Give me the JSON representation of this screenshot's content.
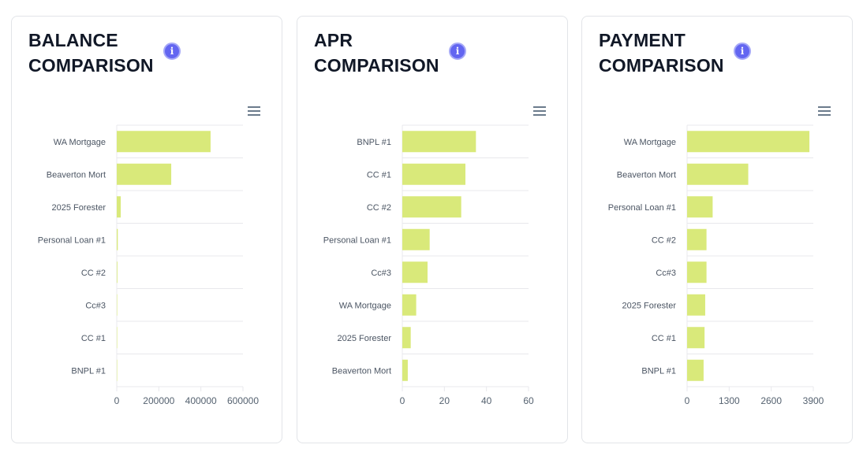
{
  "colors": {
    "bar": "#d9e97a",
    "grid": "#e8e8ec",
    "label": "#4b5563"
  },
  "chart_data": [
    {
      "type": "bar",
      "orientation": "horizontal",
      "title_lines": [
        "BALANCE",
        "COMPARISON"
      ],
      "categories": [
        "WA Mortgage",
        "Beaverton Mort",
        "2025 Forester",
        "Personal Loan #1",
        "CC #2",
        "Cc#3",
        "CC #1",
        "BNPL #1"
      ],
      "values": [
        446000,
        259000,
        19000,
        5000,
        3000,
        2000,
        2000,
        300
      ],
      "xlim": [
        0,
        600000
      ],
      "xticks": [
        "0",
        "200000",
        "400000",
        "600000"
      ],
      "xtick_values": [
        0,
        200000,
        400000,
        600000
      ]
    },
    {
      "type": "bar",
      "orientation": "horizontal",
      "title_lines": [
        "APR",
        "COMPARISON"
      ],
      "categories": [
        "BNPL #1",
        "CC #1",
        "CC #2",
        "Personal Loan #1",
        "Cc#3",
        "WA Mortgage",
        "2025 Forester",
        "Beaverton Mort"
      ],
      "values": [
        35,
        30,
        28,
        13,
        12,
        6.6,
        4,
        2.6
      ],
      "xlim": [
        0,
        60
      ],
      "xticks": [
        "0",
        "20",
        "40",
        "60"
      ],
      "xtick_values": [
        0,
        20,
        40,
        60
      ]
    },
    {
      "type": "bar",
      "orientation": "horizontal",
      "title_lines": [
        "PAYMENT",
        "COMPARISON"
      ],
      "categories": [
        "WA Mortgage",
        "Beaverton Mort",
        "Personal Loan #1",
        "CC #2",
        "Cc#3",
        "2025 Forester",
        "CC #1",
        "BNPL #1"
      ],
      "values": [
        3780,
        1890,
        790,
        600,
        600,
        560,
        540,
        510
      ],
      "xlim": [
        0,
        3900
      ],
      "xticks": [
        "0",
        "1300",
        "2600",
        "3900"
      ],
      "xtick_values": [
        0,
        1300,
        2600,
        3900
      ]
    }
  ]
}
